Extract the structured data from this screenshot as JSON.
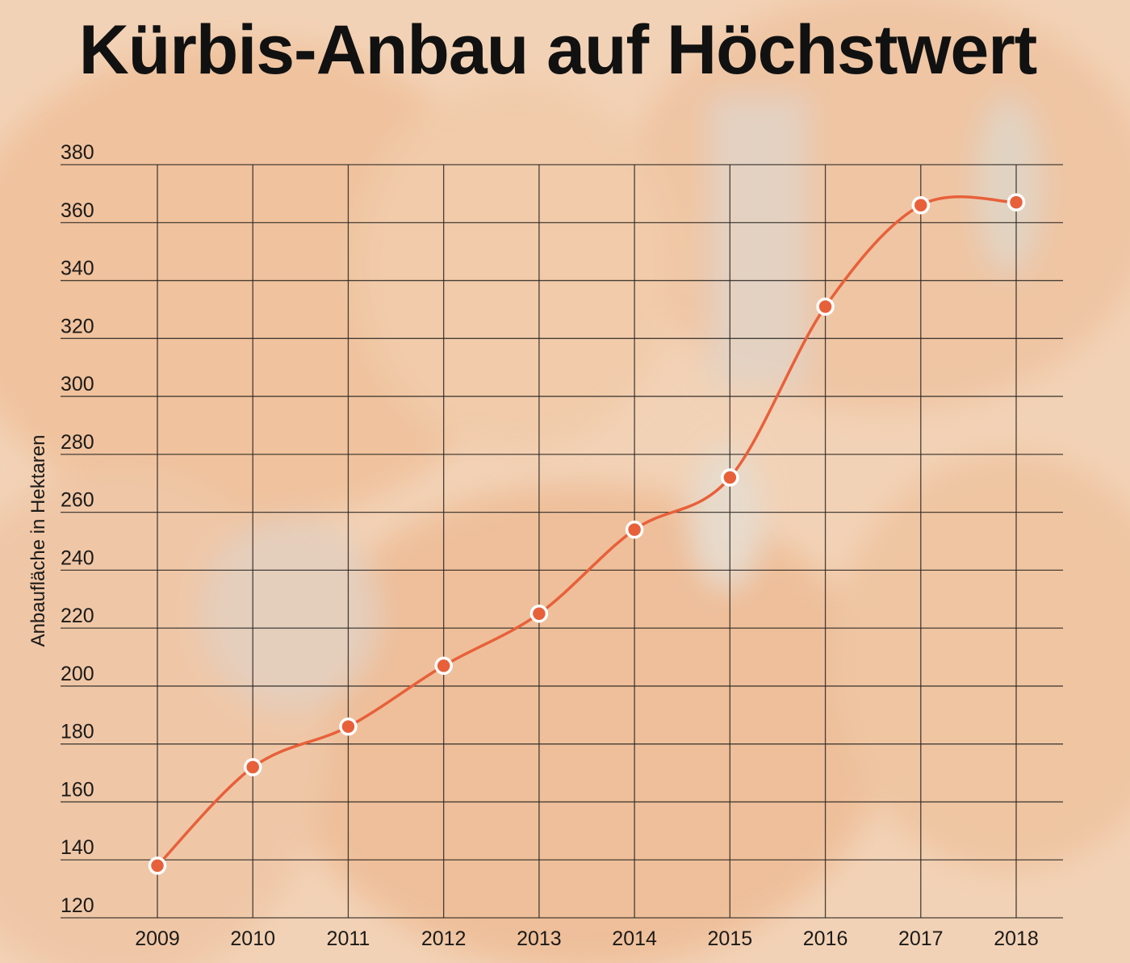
{
  "chart_data": {
    "type": "line",
    "title": "Kürbis-Anbau auf Höchstwert",
    "xlabel": "",
    "ylabel": "Anbaufläche in Hektaren",
    "categories": [
      "2009",
      "2010",
      "2011",
      "2012",
      "2013",
      "2014",
      "2015",
      "2016",
      "2017",
      "2018"
    ],
    "series": [
      {
        "values": [
          138,
          172,
          186,
          207,
          225,
          254,
          272,
          331,
          366,
          367
        ]
      }
    ],
    "yticks": [
      "120",
      "140",
      "160",
      "180",
      "200",
      "220",
      "240",
      "260",
      "280",
      "300",
      "320",
      "340",
      "360",
      "380"
    ],
    "ylim": [
      120,
      380
    ],
    "grid": true,
    "smooth": true,
    "colors": {
      "line": "#e8603a",
      "marker_fill": "#e8603a",
      "marker_stroke": "#ffffff",
      "grid": "#2a2622",
      "background": "#f3d6bd"
    }
  }
}
